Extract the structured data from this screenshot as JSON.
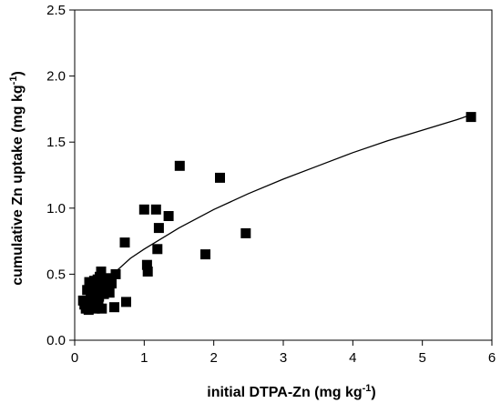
{
  "chart_data": {
    "type": "scatter",
    "xlabel": "initial DTPA-Zn",
    "xlabel_unit": "(mg kg",
    "xlabel_exp": "-1",
    "xlabel_close": ")",
    "ylabel": "cumulative Zn uptake",
    "ylabel_unit": "(mg kg",
    "ylabel_exp": "-1",
    "ylabel_close": ")",
    "xlim": [
      0,
      6
    ],
    "ylim": [
      0,
      2.5
    ],
    "x_ticks": [
      "0",
      "1",
      "2",
      "3",
      "4",
      "5",
      "6"
    ],
    "y_ticks": [
      "0.0",
      "0.5",
      "1.0",
      "1.5",
      "2.0",
      "2.5"
    ],
    "grid": false,
    "marker": "filled-square",
    "marker_color": "#000000",
    "line_color": "#000000",
    "points": [
      [
        0.12,
        0.3
      ],
      [
        0.14,
        0.27
      ],
      [
        0.16,
        0.24
      ],
      [
        0.18,
        0.38
      ],
      [
        0.2,
        0.23
      ],
      [
        0.21,
        0.44
      ],
      [
        0.23,
        0.31
      ],
      [
        0.25,
        0.27
      ],
      [
        0.26,
        0.4
      ],
      [
        0.28,
        0.45
      ],
      [
        0.29,
        0.24
      ],
      [
        0.3,
        0.37
      ],
      [
        0.31,
        0.41
      ],
      [
        0.33,
        0.46
      ],
      [
        0.34,
        0.28
      ],
      [
        0.35,
        0.33
      ],
      [
        0.36,
        0.48
      ],
      [
        0.37,
        0.42
      ],
      [
        0.38,
        0.52
      ],
      [
        0.39,
        0.24
      ],
      [
        0.4,
        0.4
      ],
      [
        0.42,
        0.35
      ],
      [
        0.43,
        0.45
      ],
      [
        0.45,
        0.38
      ],
      [
        0.47,
        0.42
      ],
      [
        0.48,
        0.47
      ],
      [
        0.5,
        0.36
      ],
      [
        0.53,
        0.43
      ],
      [
        0.57,
        0.25
      ],
      [
        0.59,
        0.5
      ],
      [
        0.72,
        0.74
      ],
      [
        0.74,
        0.29
      ],
      [
        1.0,
        0.99
      ],
      [
        1.04,
        0.57
      ],
      [
        1.05,
        0.52
      ],
      [
        1.17,
        0.99
      ],
      [
        1.19,
        0.69
      ],
      [
        1.21,
        0.85
      ],
      [
        1.35,
        0.94
      ],
      [
        1.51,
        1.32
      ],
      [
        1.88,
        0.65
      ],
      [
        2.09,
        1.23
      ],
      [
        2.46,
        0.81
      ],
      [
        5.7,
        1.69
      ]
    ],
    "fit_curve": {
      "x": [
        0.55,
        0.8,
        1.0,
        1.5,
        2.0,
        2.5,
        3.0,
        3.5,
        4.0,
        4.5,
        5.0,
        5.5,
        5.72
      ],
      "y": [
        0.5,
        0.62,
        0.69,
        0.85,
        0.99,
        1.11,
        1.22,
        1.32,
        1.42,
        1.51,
        1.59,
        1.67,
        1.71
      ]
    }
  }
}
